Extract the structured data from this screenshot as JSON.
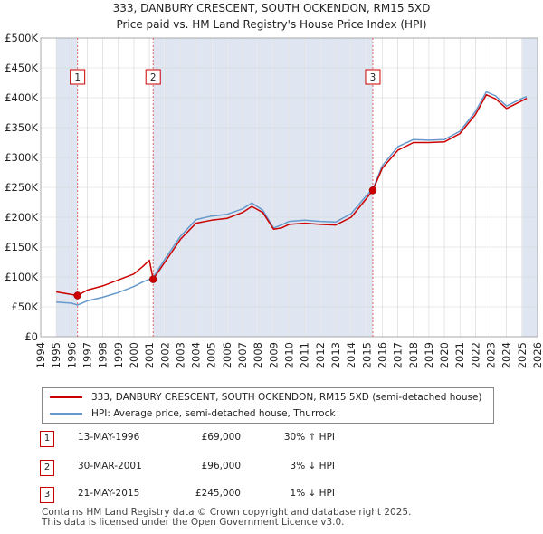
{
  "chart_data": {
    "type": "line",
    "title": "333, DANBURY CRESCENT, SOUTH OCKENDON, RM15 5XD",
    "subtitle": "Price paid vs. HM Land Registry's House Price Index (HPI)",
    "xlim": [
      1994,
      2026
    ],
    "ylim": [
      0,
      500000
    ],
    "x_ticks": [
      "1994",
      "1995",
      "1996",
      "1997",
      "1998",
      "1999",
      "2000",
      "2001",
      "2002",
      "2003",
      "2004",
      "2005",
      "2006",
      "2007",
      "2008",
      "2009",
      "2010",
      "2011",
      "2012",
      "2013",
      "2014",
      "2015",
      "2016",
      "2017",
      "2018",
      "2019",
      "2020",
      "2021",
      "2022",
      "2023",
      "2024",
      "2025",
      "2026"
    ],
    "y_ticks": [
      {
        "value": 0,
        "label": "£0"
      },
      {
        "value": 50000,
        "label": "£50K"
      },
      {
        "value": 100000,
        "label": "£100K"
      },
      {
        "value": 150000,
        "label": "£150K"
      },
      {
        "value": 200000,
        "label": "£200K"
      },
      {
        "value": 250000,
        "label": "£250K"
      },
      {
        "value": 300000,
        "label": "£300K"
      },
      {
        "value": 350000,
        "label": "£350K"
      },
      {
        "value": 400000,
        "label": "£400K"
      },
      {
        "value": 450000,
        "label": "£450K"
      },
      {
        "value": 500000,
        "label": "£500K"
      }
    ],
    "grid": true,
    "shaded_regions": [
      [
        1995.0,
        1996.37
      ],
      [
        2001.24,
        2015.39
      ],
      [
        2025.0,
        2026.0
      ]
    ],
    "series": [
      {
        "name": "333, DANBURY CRESCENT, SOUTH OCKENDON, RM15 5XD (semi-detached house)",
        "color": "#cc0000",
        "x": [
          1995.0,
          1996.37,
          1997.0,
          1998.0,
          1999.0,
          2000.0,
          2000.6,
          2001.0,
          2001.24,
          2002.0,
          2003.0,
          2004.0,
          2005.0,
          2006.0,
          2007.0,
          2007.6,
          2008.3,
          2009.0,
          2009.5,
          2010.0,
          2011.0,
          2012.0,
          2013.0,
          2014.0,
          2015.0,
          2015.39,
          2016.0,
          2017.0,
          2018.0,
          2019.0,
          2020.0,
          2021.0,
          2022.0,
          2022.7,
          2023.3,
          2024.0,
          2025.0,
          2025.3
        ],
        "y": [
          75000,
          69000,
          78000,
          85000,
          95000,
          105000,
          118000,
          128000,
          96000,
          125000,
          163000,
          190000,
          195000,
          198000,
          208000,
          218000,
          208000,
          180000,
          182000,
          188000,
          190000,
          188000,
          187000,
          200000,
          232000,
          245000,
          282000,
          312000,
          325000,
          325000,
          326000,
          340000,
          372000,
          405000,
          398000,
          382000,
          395000,
          399000
        ]
      },
      {
        "name": "HPI: Average price, semi-detached house, Thurrock",
        "color": "#6699cc",
        "x": [
          1995.0,
          1996.0,
          1996.37,
          1997.0,
          1998.0,
          1999.0,
          2000.0,
          2000.6,
          2001.0,
          2001.24,
          2002.0,
          2003.0,
          2004.0,
          2005.0,
          2006.0,
          2007.0,
          2007.6,
          2008.3,
          2009.0,
          2009.5,
          2010.0,
          2011.0,
          2012.0,
          2013.0,
          2014.0,
          2015.0,
          2015.39,
          2016.0,
          2017.0,
          2018.0,
          2019.0,
          2020.0,
          2021.0,
          2022.0,
          2022.7,
          2023.3,
          2024.0,
          2025.0,
          2025.3
        ],
        "y": [
          58000,
          56000,
          53000,
          60000,
          66000,
          74000,
          84000,
          92000,
          96000,
          99000,
          130000,
          168000,
          196000,
          202000,
          205000,
          214000,
          224000,
          212000,
          182000,
          187000,
          193000,
          195000,
          193000,
          192000,
          206000,
          237000,
          247000,
          286000,
          318000,
          330000,
          329000,
          330000,
          344000,
          377000,
          410000,
          403000,
          386000,
          399000,
          402000
        ]
      }
    ],
    "sales": [
      {
        "marker": "1",
        "x": 1996.37,
        "price": 69000
      },
      {
        "marker": "2",
        "x": 2001.24,
        "price": 96000
      },
      {
        "marker": "3",
        "x": 2015.39,
        "price": 245000
      }
    ]
  },
  "legend": {
    "property_label": "333, DANBURY CRESCENT, SOUTH OCKENDON, RM15 5XD (semi-detached house)",
    "hpi_label": "HPI: Average price, semi-detached house, Thurrock",
    "property_color": "#cc0000",
    "hpi_color": "#6699cc"
  },
  "transactions": [
    {
      "marker": "1",
      "date": "13-MAY-1996",
      "price": "£69,000",
      "hpi": "30% ↑ HPI"
    },
    {
      "marker": "2",
      "date": "30-MAR-2001",
      "price": "£96,000",
      "hpi": "3% ↓ HPI"
    },
    {
      "marker": "3",
      "date": "21-MAY-2015",
      "price": "£245,000",
      "hpi": "1% ↓ HPI"
    }
  ],
  "footer": {
    "line1": "Contains HM Land Registry data © Crown copyright and database right 2025.",
    "line2": "This data is licensed under the Open Government Licence v3.0."
  }
}
